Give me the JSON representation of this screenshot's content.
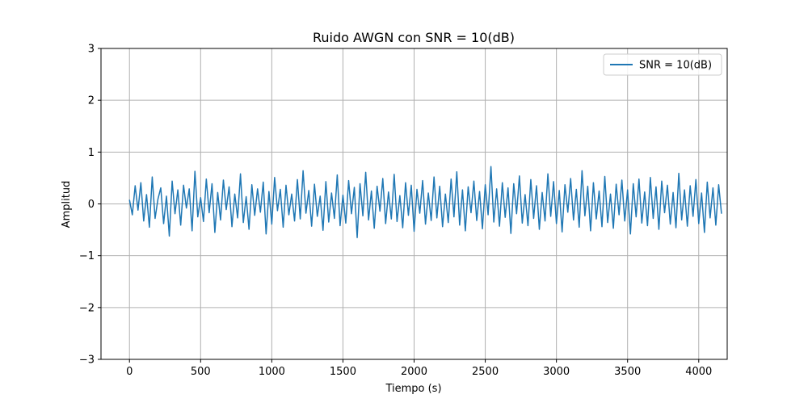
{
  "chart_data": {
    "type": "line",
    "title": "Ruido AWGN con SNR = 10(dB)",
    "xlabel": "Tiempo (s)",
    "ylabel": "Amplitud",
    "xlim": [
      -200,
      4200
    ],
    "ylim": [
      -3,
      3
    ],
    "x_ticks": [
      0,
      500,
      1000,
      1500,
      2000,
      2500,
      3000,
      3500,
      4000
    ],
    "x_tick_labels": [
      "0",
      "500",
      "1000",
      "1500",
      "2000",
      "2500",
      "3000",
      "3500",
      "4000"
    ],
    "y_ticks": [
      -3,
      -2,
      -1,
      0,
      1,
      2,
      3
    ],
    "y_tick_labels": [
      "−3",
      "−2",
      "−1",
      "0",
      "1",
      "2",
      "3"
    ],
    "grid": true,
    "legend_position": "top-right",
    "series": [
      {
        "name": "SNR = 10(dB)",
        "color": "#1f77b4",
        "x_start": 0,
        "x_step": 20,
        "values": [
          0.08,
          -0.21,
          0.35,
          -0.12,
          0.41,
          -0.33,
          0.18,
          -0.45,
          0.52,
          -0.28,
          0.09,
          0.31,
          -0.38,
          0.15,
          -0.62,
          0.44,
          -0.19,
          0.27,
          -0.41,
          0.36,
          -0.08,
          0.29,
          -0.52,
          0.63,
          -0.25,
          0.12,
          -0.34,
          0.48,
          -0.17,
          0.39,
          -0.55,
          0.22,
          -0.31,
          0.46,
          -0.11,
          0.33,
          -0.44,
          0.19,
          -0.27,
          0.58,
          -0.36,
          0.14,
          -0.49,
          0.37,
          -0.22,
          0.29,
          -0.16,
          0.42,
          -0.58,
          0.24,
          -0.39,
          0.51,
          -0.13,
          0.28,
          -0.45,
          0.36,
          -0.21,
          0.19,
          -0.33,
          0.47,
          -0.29,
          0.64,
          -0.18,
          0.26,
          -0.43,
          0.38,
          -0.24,
          0.15,
          -0.51,
          0.43,
          -0.35,
          0.21,
          -0.28,
          0.56,
          -0.42,
          0.17,
          -0.37,
          0.45,
          -0.19,
          0.32,
          -0.65,
          0.39,
          -0.23,
          0.61,
          -0.31,
          0.25,
          -0.47,
          0.34,
          -0.14,
          0.49,
          -0.38,
          0.23,
          -0.29,
          0.57,
          -0.34,
          0.16,
          -0.46,
          0.41,
          -0.22,
          0.36,
          -0.53,
          0.28,
          -0.18,
          0.45,
          -0.39,
          0.21,
          -0.32,
          0.52,
          -0.27,
          0.34,
          -0.44,
          0.19,
          -0.36,
          0.48,
          -0.25,
          0.62,
          -0.41,
          0.27,
          -0.52,
          0.33,
          -0.17,
          0.44,
          -0.32,
          0.24,
          -0.48,
          0.37,
          -0.21,
          0.72,
          -0.35,
          0.29,
          -0.43,
          0.41,
          -0.26,
          0.31,
          -0.57,
          0.39,
          -0.19,
          0.54,
          -0.37,
          0.18,
          -0.42,
          0.47,
          -0.28,
          0.35,
          -0.49,
          0.22,
          -0.33,
          0.58,
          -0.24,
          0.43,
          -0.38,
          0.26,
          -0.54,
          0.37,
          -0.16,
          0.49,
          -0.31,
          0.28,
          -0.45,
          0.64,
          -0.23,
          0.34,
          -0.52,
          0.41,
          -0.29,
          0.25,
          -0.44,
          0.53,
          -0.36,
          0.19,
          -0.47,
          0.38,
          -0.21,
          0.46,
          -0.33,
          0.27,
          -0.58,
          0.39,
          -0.25,
          0.48,
          -0.37,
          0.23,
          -0.42,
          0.51,
          -0.28,
          0.33,
          -0.49,
          0.44,
          -0.17,
          0.36,
          -0.39,
          0.22,
          -0.46,
          0.59,
          -0.31,
          0.27,
          -0.43,
          0.35,
          -0.24,
          0.47,
          -0.38,
          0.21,
          -0.55,
          0.42,
          -0.27,
          0.31,
          -0.41,
          0.37,
          -0.19
        ]
      }
    ]
  }
}
